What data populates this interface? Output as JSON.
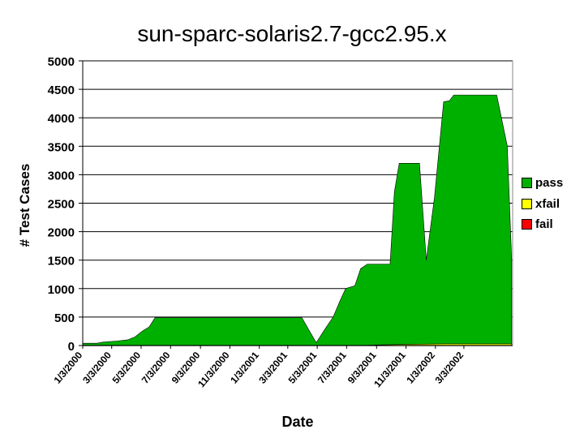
{
  "chart_data": {
    "type": "area",
    "title": "sun-sparc-solaris2.7-gcc2.95.x",
    "xlabel": "Date",
    "ylabel": "# Test Cases",
    "ylim": [
      0,
      5000
    ],
    "yticks": [
      0,
      500,
      1000,
      1500,
      2000,
      2500,
      3000,
      3500,
      4000,
      4500,
      5000
    ],
    "xticks": [
      "1/3/2000",
      "3/3/2000",
      "5/3/2000",
      "7/3/2000",
      "9/3/2000",
      "11/3/2000",
      "1/3/2001",
      "3/3/2001",
      "5/3/2001",
      "7/3/2001",
      "9/3/2001",
      "11/3/2001",
      "1/3/2002",
      "3/3/2002"
    ],
    "grid": "horizontal",
    "legend_position": "right",
    "series": [
      {
        "name": "pass",
        "color": "#00b000",
        "points": [
          [
            "2000-01-03",
            40
          ],
          [
            "2000-02-01",
            40
          ],
          [
            "2000-02-14",
            60
          ],
          [
            "2000-03-15",
            80
          ],
          [
            "2000-04-05",
            100
          ],
          [
            "2000-04-20",
            150
          ],
          [
            "2000-05-05",
            250
          ],
          [
            "2000-05-20",
            330
          ],
          [
            "2000-06-01",
            490
          ],
          [
            "2000-06-20",
            490
          ],
          [
            "2000-08-01",
            490
          ],
          [
            "2000-09-01",
            490
          ],
          [
            "2000-10-01",
            490
          ],
          [
            "2000-12-20",
            490
          ],
          [
            "2001-01-15",
            490
          ],
          [
            "2001-02-01",
            490
          ],
          [
            "2001-03-01",
            490
          ],
          [
            "2001-04-01",
            490
          ],
          [
            "2001-05-01",
            50
          ],
          [
            "2001-05-20",
            300
          ],
          [
            "2001-06-05",
            500
          ],
          [
            "2001-06-20",
            800
          ],
          [
            "2001-07-01",
            1000
          ],
          [
            "2001-07-20",
            1050
          ],
          [
            "2001-08-01",
            1350
          ],
          [
            "2001-08-15",
            1430
          ],
          [
            "2001-09-01",
            1430
          ],
          [
            "2001-09-15",
            1430
          ],
          [
            "2001-10-01",
            1430
          ],
          [
            "2001-10-10",
            2700
          ],
          [
            "2001-10-20",
            3200
          ],
          [
            "2001-11-15",
            3200
          ],
          [
            "2001-12-01",
            3200
          ],
          [
            "2001-12-15",
            1500
          ],
          [
            "2002-01-01",
            2600
          ],
          [
            "2002-01-20",
            4280
          ],
          [
            "2002-02-01",
            4300
          ],
          [
            "2002-02-10",
            4400
          ],
          [
            "2002-02-20",
            4400
          ],
          [
            "2002-03-01",
            4400
          ],
          [
            "2002-03-20",
            4400
          ],
          [
            "2002-04-01",
            4400
          ],
          [
            "2002-04-20",
            4400
          ],
          [
            "2002-05-10",
            4400
          ],
          [
            "2002-06-01",
            3500
          ],
          [
            "2002-06-10",
            1500
          ]
        ]
      },
      {
        "name": "xfail",
        "color": "#ffff00",
        "points": [
          [
            "2000-01-03",
            0
          ],
          [
            "2001-08-01",
            0
          ],
          [
            "2001-09-01",
            10
          ],
          [
            "2001-10-01",
            15
          ],
          [
            "2001-11-01",
            20
          ],
          [
            "2002-01-20",
            30
          ],
          [
            "2002-06-10",
            30
          ]
        ]
      },
      {
        "name": "fail",
        "color": "#ff0000",
        "points": [
          [
            "2000-01-03",
            0
          ],
          [
            "2002-06-10",
            0
          ]
        ]
      }
    ]
  }
}
